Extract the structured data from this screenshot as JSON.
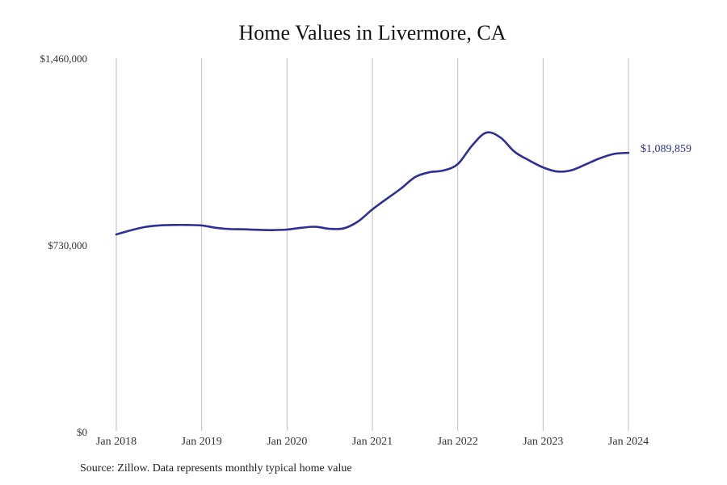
{
  "chart_data": {
    "type": "line",
    "title": "Home Values in Livermore, CA",
    "xlabel": "",
    "ylabel": "",
    "ylim": [
      0,
      1460000
    ],
    "yticks": [
      {
        "value": 0,
        "label": "$0"
      },
      {
        "value": 730000,
        "label": "$730,000"
      },
      {
        "value": 1460000,
        "label": "$1,460,000"
      }
    ],
    "xticks": [
      "Jan 2018",
      "Jan 2019",
      "Jan 2020",
      "Jan 2021",
      "Jan 2022",
      "Jan 2023",
      "Jan 2024"
    ],
    "grid": {
      "vertical": true,
      "horizontal": false
    },
    "legend": null,
    "series": [
      {
        "name": "Typical home value",
        "color": "#2e2f96",
        "x": [
          "2018-01",
          "2018-03",
          "2018-05",
          "2018-07",
          "2018-09",
          "2018-11",
          "2019-01",
          "2019-03",
          "2019-05",
          "2019-07",
          "2019-09",
          "2019-11",
          "2020-01",
          "2020-03",
          "2020-05",
          "2020-07",
          "2020-09",
          "2020-11",
          "2021-01",
          "2021-03",
          "2021-05",
          "2021-07",
          "2021-09",
          "2021-11",
          "2022-01",
          "2022-03",
          "2022-05",
          "2022-07",
          "2022-09",
          "2022-11",
          "2023-01",
          "2023-03",
          "2023-05",
          "2023-07",
          "2023-09",
          "2023-11",
          "2024-01"
        ],
        "values": [
          771000,
          787000,
          800000,
          806000,
          808000,
          808000,
          806000,
          797000,
          792000,
          791000,
          789000,
          788000,
          790000,
          797000,
          801000,
          793000,
          795000,
          822000,
          869000,
          910000,
          950000,
          995000,
          1014000,
          1021000,
          1046000,
          1118000,
          1169000,
          1150000,
          1094000,
          1061000,
          1033000,
          1017000,
          1022000,
          1045000,
          1069000,
          1086000,
          1089859
        ]
      }
    ],
    "annotations": [
      {
        "text": "$1,089,859",
        "x": "2024-01",
        "value": 1089859
      }
    ]
  },
  "footer": {
    "source": "Source: Zillow. Data represents monthly typical home value"
  }
}
